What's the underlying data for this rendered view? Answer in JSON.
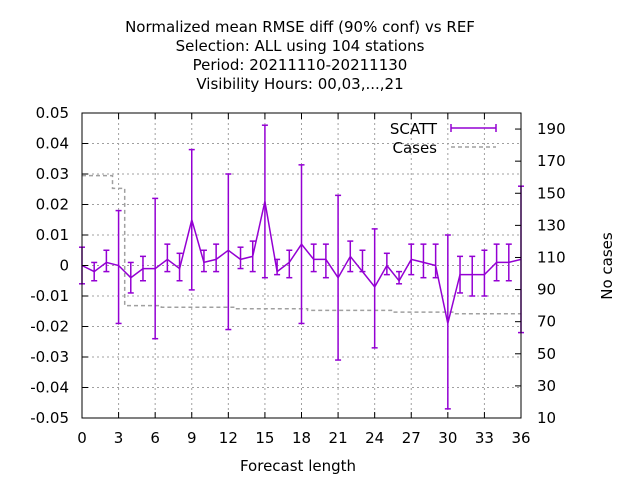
{
  "title_lines": [
    "Normalized mean RMSE diff (90% conf) vs REF",
    "Selection: ALL using   104 stations",
    "Period: 20211110-20211130",
    "Visibility   Hours:  00,03,...,21"
  ],
  "colors": {
    "scatt": "#9400D3",
    "cases": "#a0a0a0",
    "grid": "#a0a0a0",
    "axis": "#000000"
  },
  "chart_data": {
    "type": "line",
    "xlabel": "Forecast length",
    "ylabel": "",
    "y2label": "No cases",
    "xlim": [
      0,
      36
    ],
    "ylim": [
      -0.05,
      0.05
    ],
    "y2lim": [
      10,
      200
    ],
    "grid": true,
    "legend_position": "top-right",
    "xticks": [
      0,
      3,
      6,
      9,
      12,
      15,
      18,
      21,
      24,
      27,
      30,
      33,
      36
    ],
    "yticks": [
      -0.05,
      -0.04,
      -0.03,
      -0.02,
      -0.01,
      0,
      0.01,
      0.02,
      0.03,
      0.04,
      0.05
    ],
    "ytick_labels": [
      "-0.05",
      "-0.04",
      "-0.03",
      "-0.02",
      "-0.01",
      "0",
      "0.01",
      "0.02",
      "0.03",
      "0.04",
      "0.05"
    ],
    "y2ticks": [
      10,
      30,
      50,
      70,
      90,
      110,
      130,
      150,
      170,
      190
    ],
    "series": [
      {
        "name": "SCATT",
        "style": "errorbars-line",
        "x": [
          0,
          1,
          2,
          3,
          4,
          5,
          6,
          7,
          8,
          9,
          10,
          11,
          12,
          13,
          14,
          15,
          16,
          17,
          18,
          19,
          20,
          21,
          22,
          23,
          24,
          25,
          26,
          27,
          28,
          29,
          30,
          31,
          32,
          33,
          34,
          35,
          36
        ],
        "y": [
          0.0,
          -0.002,
          0.001,
          0.0,
          -0.004,
          -0.001,
          -0.001,
          0.002,
          -0.001,
          0.015,
          0.001,
          0.002,
          0.005,
          0.002,
          0.003,
          0.021,
          -0.002,
          0.001,
          0.007,
          0.002,
          0.002,
          -0.004,
          0.003,
          -0.002,
          -0.007,
          0.0,
          -0.005,
          0.002,
          0.001,
          0.0,
          -0.019,
          -0.003,
          -0.003,
          -0.003,
          0.001,
          0.001,
          0.002
        ],
        "ylow": [
          -0.006,
          -0.005,
          -0.002,
          -0.019,
          -0.009,
          -0.005,
          -0.024,
          -0.002,
          -0.005,
          -0.008,
          -0.002,
          -0.002,
          -0.021,
          -0.001,
          -0.002,
          -0.004,
          -0.003,
          -0.004,
          -0.019,
          -0.002,
          -0.004,
          -0.031,
          -0.002,
          -0.002,
          -0.027,
          -0.003,
          -0.006,
          -0.003,
          -0.004,
          -0.004,
          -0.047,
          -0.009,
          -0.01,
          -0.01,
          -0.005,
          -0.005,
          -0.022
        ],
        "yhigh": [
          0.006,
          0.001,
          0.005,
          0.018,
          0.001,
          0.003,
          0.022,
          0.007,
          0.004,
          0.038,
          0.005,
          0.007,
          0.03,
          0.006,
          0.008,
          0.046,
          0.002,
          0.005,
          0.033,
          0.007,
          0.007,
          0.023,
          0.008,
          0.005,
          0.012,
          0.004,
          -0.002,
          0.007,
          0.007,
          0.007,
          0.01,
          0.003,
          0.003,
          0.005,
          0.007,
          0.007,
          0.026
        ]
      },
      {
        "name": "Cases",
        "style": "dashed-steps",
        "axis": "y2",
        "x": [
          0,
          1,
          2,
          3,
          4,
          5,
          6,
          7,
          8,
          9,
          10,
          11,
          12,
          13,
          14,
          15,
          16,
          17,
          18,
          19,
          20,
          21,
          22,
          23,
          24,
          25,
          26,
          27,
          28,
          29,
          30,
          31,
          32,
          33,
          34,
          35,
          36
        ],
        "values": [
          161,
          161,
          161,
          153,
          80,
          80,
          80,
          79,
          79,
          79,
          79,
          79,
          79,
          78,
          78,
          78,
          78,
          78,
          78,
          77,
          77,
          77,
          77,
          77,
          77,
          77,
          76,
          76,
          76,
          76,
          76,
          75,
          75,
          75,
          75,
          75,
          75
        ]
      }
    ]
  }
}
